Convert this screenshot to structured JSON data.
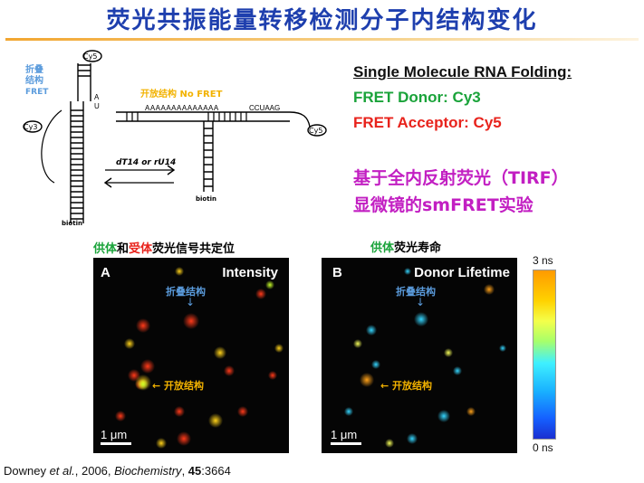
{
  "title": "荧光共振能量转移检测分子内结构变化",
  "diagram": {
    "folded_label_line1": "折叠",
    "folded_label_line2": "结构",
    "fret_label": "FRET",
    "open_label": "开放结构 No FRET",
    "cy3": "Cy3",
    "cy5": "Cy5",
    "biotin": "biotin",
    "arrow_label": "dT14 or rU14"
  },
  "legend": {
    "heading": "Single Molecule RNA Folding:",
    "donor": "FRET Donor: Cy3",
    "acceptor": "FRET Acceptor: Cy5",
    "donor_color": "#1aa33a",
    "acceptor_color": "#e8231c"
  },
  "subtitle": {
    "line1": "基于全内反射荧光（TIRF）",
    "line2": "显微镜的smFRET实验"
  },
  "panelA": {
    "caption_donor": "供体",
    "caption_and": "和",
    "caption_acceptor": "受体",
    "caption_rest": "荧光信号共定位",
    "letter": "A",
    "name": "Intensity",
    "folded": "折叠结构",
    "open": "开放结构",
    "scale": "1 μm"
  },
  "panelB": {
    "caption_donor": "供体",
    "caption_rest": "荧光寿命",
    "letter": "B",
    "name": "Donor Lifetime",
    "folded": "折叠结构",
    "open": "开放结构",
    "scale": "1 μm"
  },
  "colorbar": {
    "max": "3 ns",
    "min": "0 ns"
  },
  "reference": {
    "authors": "Downey ",
    "etal": "et al.",
    "year": ", 2006, ",
    "journal": "Biochemistry",
    "sep": ", ",
    "volume": "45",
    "pages": ":3664"
  }
}
